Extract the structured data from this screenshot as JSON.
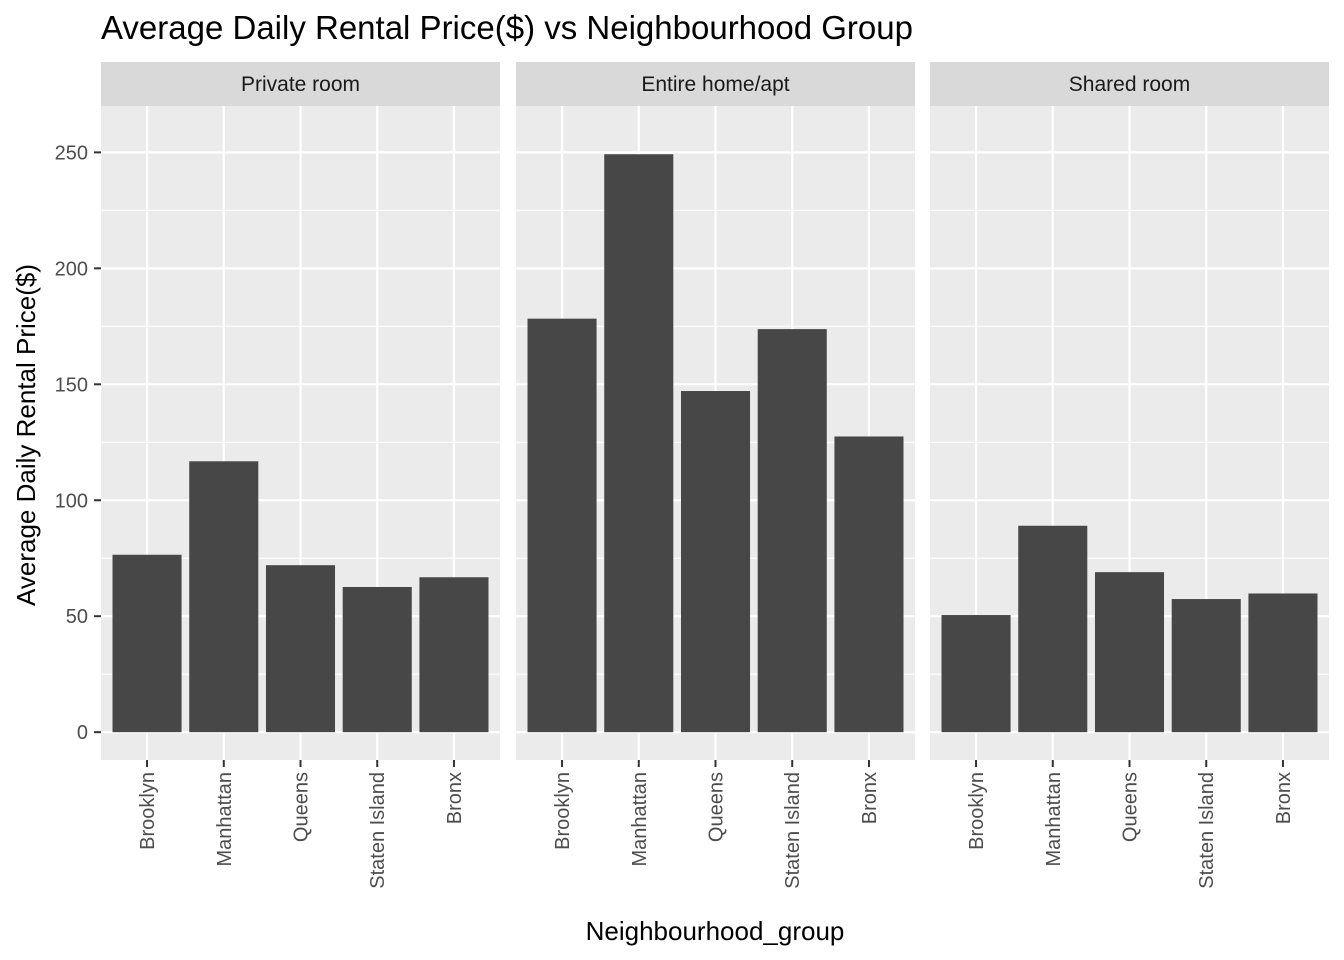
{
  "chart_data": {
    "type": "bar",
    "title": "Average Daily Rental Price($) vs Neighbourhood Group",
    "xlabel": "Neighbourhood_group",
    "ylabel": "Average Daily Rental Price($)",
    "ylim": [
      -12,
      270
    ],
    "yticks": [
      0,
      50,
      100,
      150,
      200,
      250
    ],
    "categories": [
      "Brooklyn",
      "Manhattan",
      "Queens",
      "Staten Island",
      "Bronx"
    ],
    "facets": [
      {
        "label": "Private room",
        "values": [
          76.5,
          116.8,
          72,
          62.6,
          66.8
        ]
      },
      {
        "label": "Entire home/apt",
        "values": [
          178.3,
          249.2,
          147.1,
          173.8,
          127.5
        ]
      },
      {
        "label": "Shared room",
        "values": [
          50.5,
          89,
          69,
          57.4,
          59.8
        ]
      }
    ],
    "colors": {
      "bar": "#474747",
      "panel": "#ebebeb",
      "strip": "#d9d9d9",
      "grid": "#ffffff"
    }
  }
}
